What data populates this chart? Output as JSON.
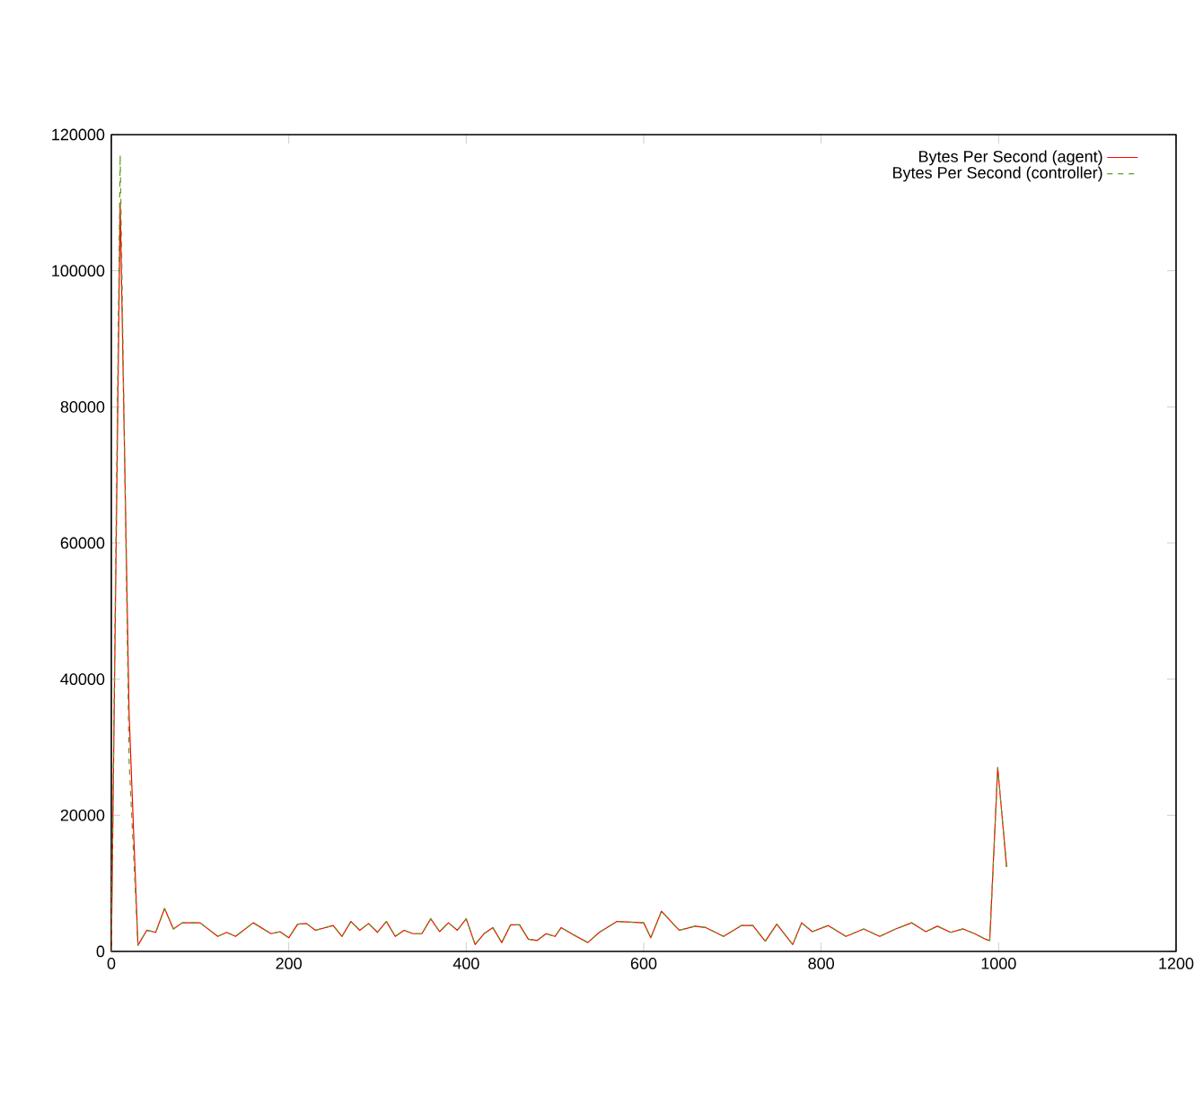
{
  "chart_data": {
    "type": "line",
    "x": [
      0,
      10,
      20,
      30,
      40,
      50,
      60,
      70,
      80,
      100,
      120,
      130,
      140,
      160,
      180,
      190,
      200,
      210,
      220,
      230,
      250,
      260,
      270,
      280,
      290,
      300,
      310,
      320,
      330,
      340,
      350,
      360,
      370,
      380,
      390,
      400,
      410,
      420,
      430,
      440,
      450,
      460,
      470,
      480,
      490,
      500,
      507,
      520,
      537,
      550,
      570,
      600,
      608,
      620,
      640,
      658,
      670,
      690,
      710,
      723,
      737,
      750,
      768,
      778,
      790,
      808,
      828,
      848,
      866,
      884,
      902,
      918,
      931,
      946,
      960,
      973,
      985,
      990,
      999,
      1009
    ],
    "series": [
      {
        "name": "Bytes Per Second (agent)",
        "color": "#ff0000",
        "line_style": "solid",
        "values": [
          0,
          110000,
          35000,
          900,
          3100,
          2800,
          6300,
          3300,
          4200,
          4200,
          2200,
          2800,
          2200,
          4200,
          2600,
          2900,
          2000,
          4000,
          4100,
          3100,
          3800,
          2200,
          4400,
          3100,
          4100,
          2800,
          4400,
          2200,
          3100,
          2600,
          2600,
          4800,
          2900,
          4200,
          3100,
          4800,
          1000,
          2600,
          3500,
          1300,
          3900,
          3900,
          1800,
          1600,
          2600,
          2200,
          3500,
          2500,
          1300,
          2800,
          4400,
          4200,
          2000,
          5900,
          3100,
          3700,
          3500,
          2200,
          3800,
          3800,
          1500,
          4000,
          1000,
          4200,
          2900,
          3800,
          2200,
          3300,
          2200,
          3300,
          4200,
          2900,
          3700,
          2800,
          3300,
          2600,
          1800,
          1600,
          27000,
          12400
        ]
      },
      {
        "name": "Bytes Per Second (controller)",
        "color": "#5a9e1a",
        "line_style": "dashed",
        "values": [
          0,
          117000,
          28000,
          900,
          3100,
          2800,
          6300,
          3300,
          4200,
          4200,
          2200,
          2800,
          2200,
          4200,
          2600,
          2900,
          2000,
          4000,
          4100,
          3100,
          3800,
          2200,
          4400,
          3100,
          4100,
          2800,
          4400,
          2200,
          3100,
          2600,
          2600,
          4800,
          2900,
          4200,
          3100,
          4800,
          1000,
          2600,
          3500,
          1300,
          3900,
          3900,
          1800,
          1600,
          2600,
          2200,
          3500,
          2500,
          1300,
          2800,
          4400,
          4200,
          2000,
          5900,
          3100,
          3700,
          3500,
          2200,
          3800,
          3800,
          1500,
          4000,
          1000,
          4200,
          2900,
          3800,
          2200,
          3300,
          2200,
          3300,
          4200,
          2900,
          3700,
          2800,
          3300,
          2600,
          1800,
          1600,
          27000,
          12400
        ]
      }
    ],
    "xlim": [
      0,
      1200
    ],
    "ylim": [
      0,
      120000
    ],
    "xticks": [
      0,
      200,
      400,
      600,
      800,
      1000,
      1200
    ],
    "yticks": [
      0,
      20000,
      40000,
      60000,
      80000,
      100000,
      120000
    ],
    "grid": false,
    "legend": "top right",
    "marker": "none"
  }
}
